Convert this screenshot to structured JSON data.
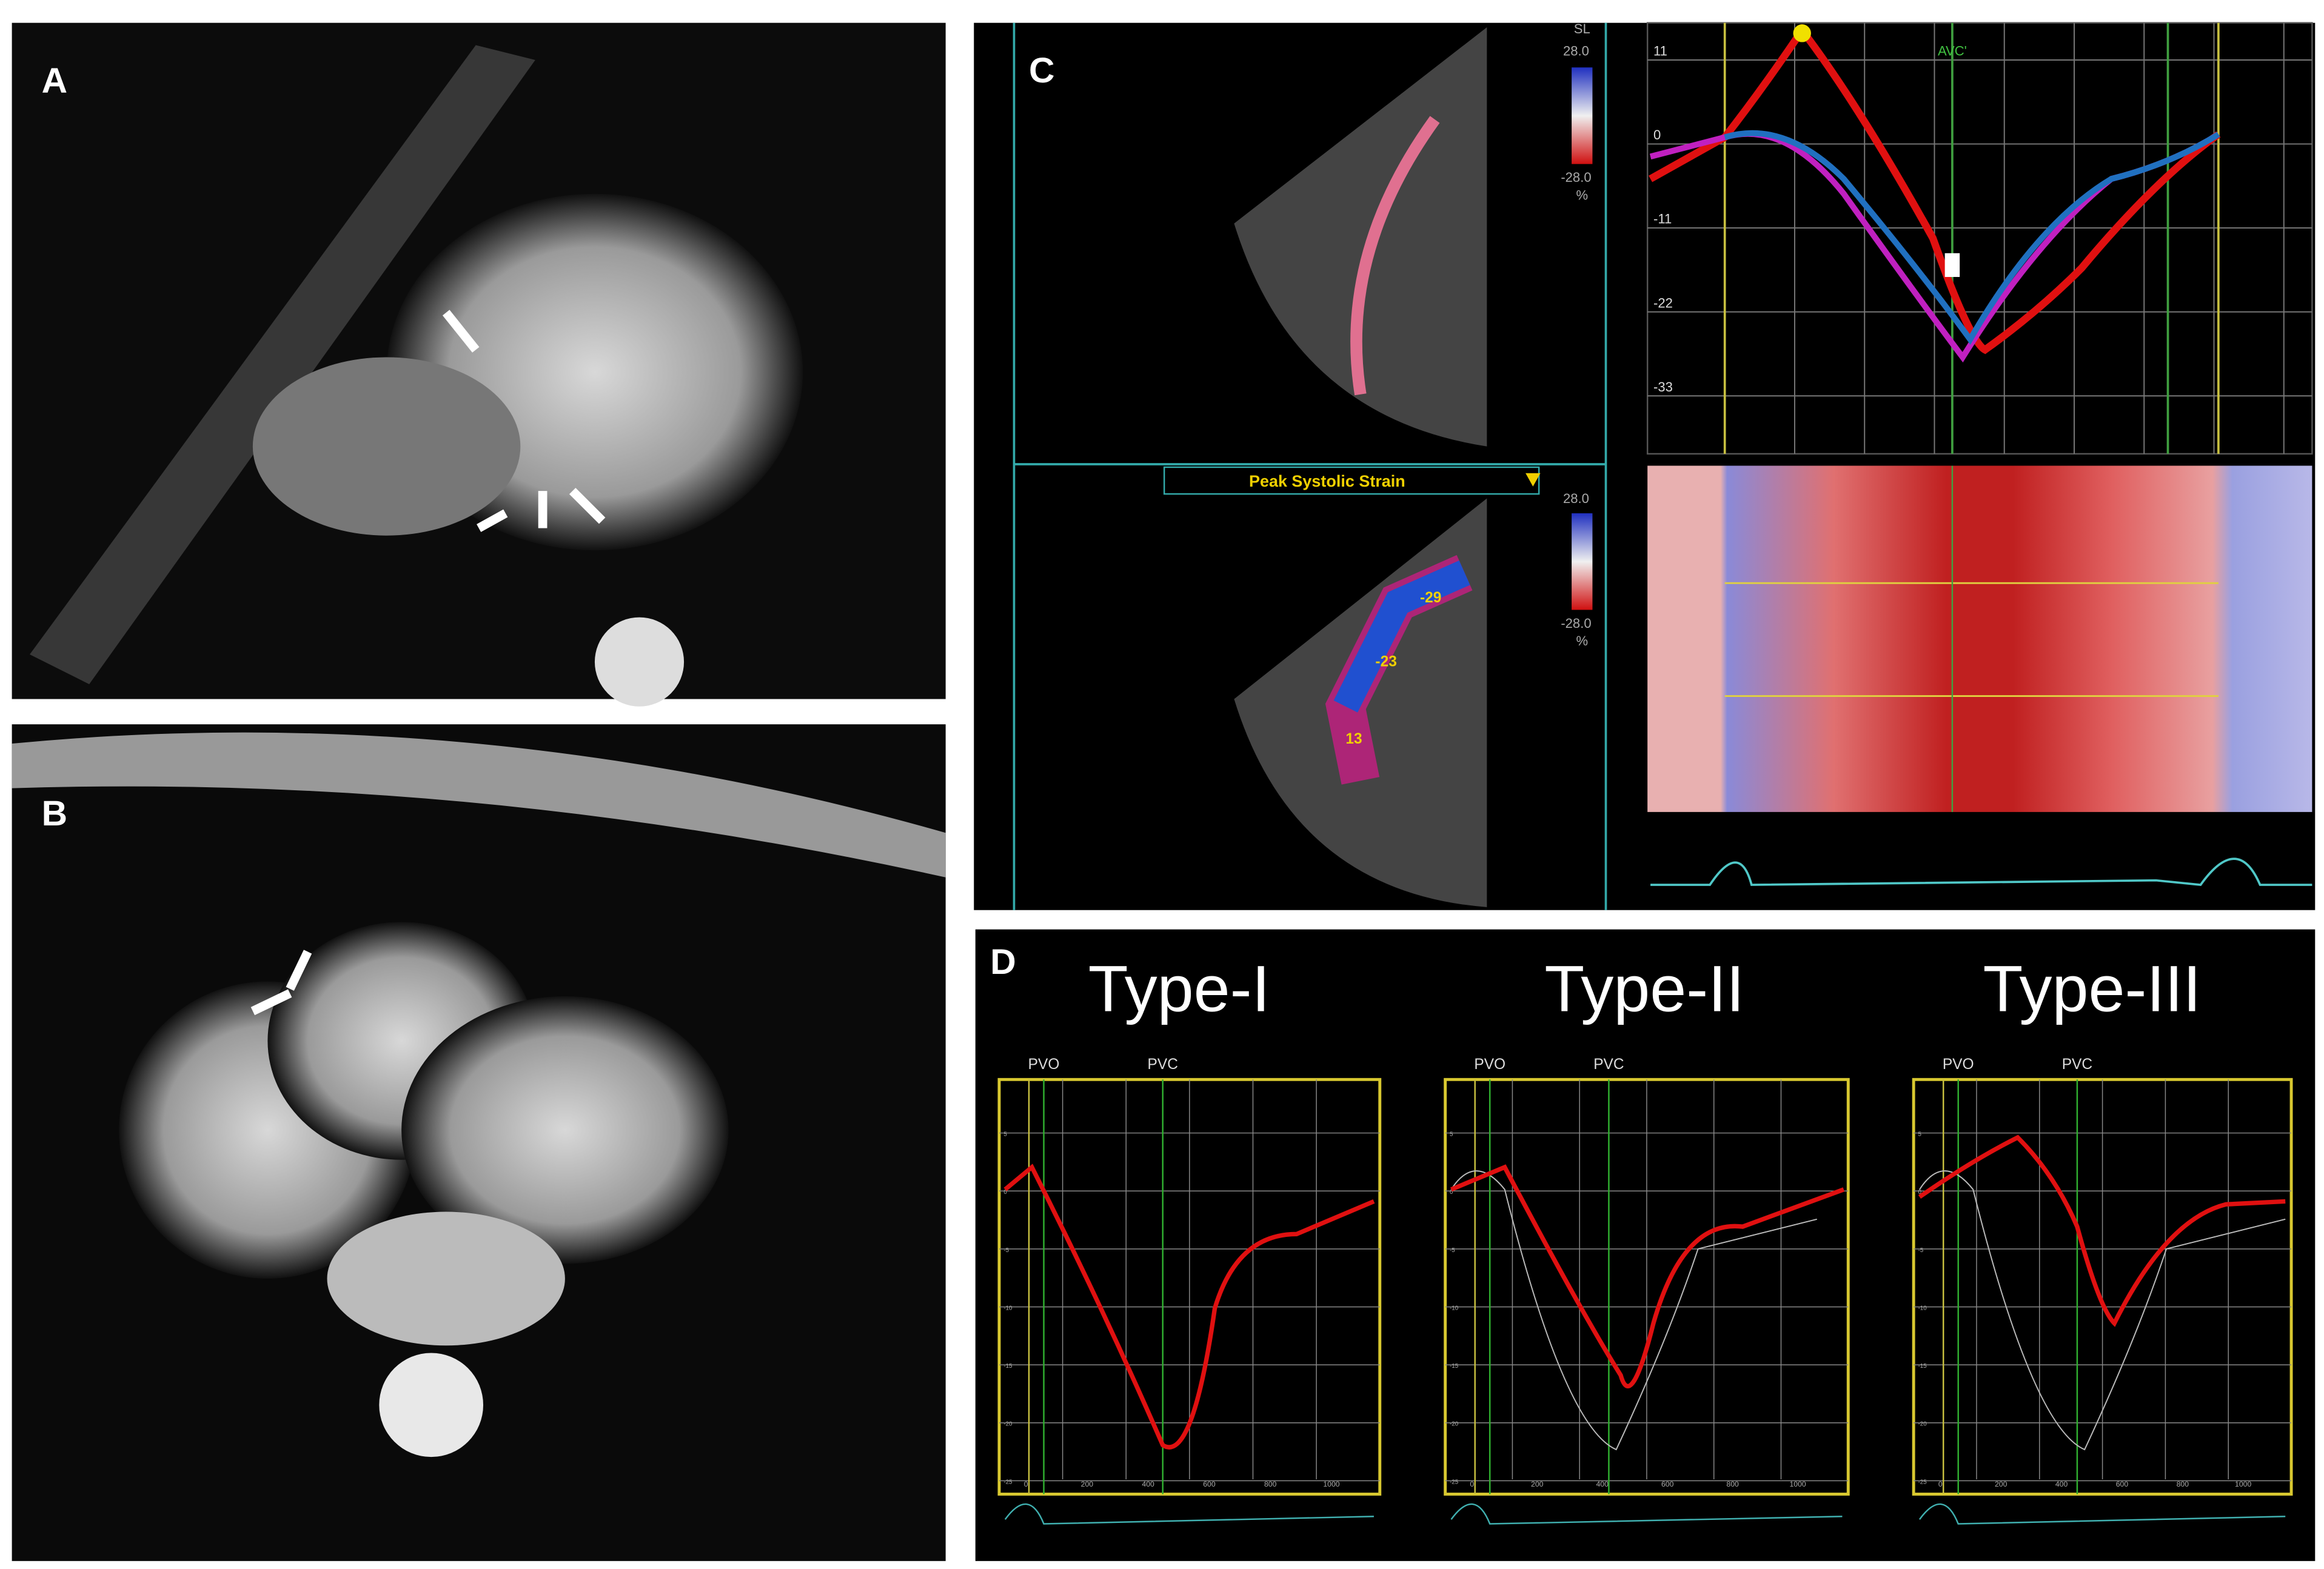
{
  "panels": {
    "a": {
      "label": "A"
    },
    "b": {
      "label": "B"
    },
    "c": {
      "label": "C",
      "color_scale": {
        "unit": "SL",
        "max": "28.0",
        "min": "-28.0",
        "percent": "%"
      },
      "measure": "Peak Systolic Strain",
      "segment_values": [
        "-29",
        "-23",
        "13"
      ],
      "strain_chart": {
        "marker": "AVC'",
        "yticks": [
          "11",
          "0",
          "-11",
          "-22",
          "-33"
        ]
      }
    },
    "d": {
      "label": "D",
      "plots": [
        {
          "title": "Type-I",
          "pvo": "PVO",
          "pvc": "PVC"
        },
        {
          "title": "Type-II",
          "pvo": "PVO",
          "pvc": "PVC"
        },
        {
          "title": "Type-III",
          "pvo": "PVO",
          "pvc": "PVC"
        }
      ],
      "xticks": [
        "0",
        "200",
        "400",
        "600",
        "800",
        "1000"
      ],
      "yticks": [
        "5",
        "0",
        "-5",
        "-10",
        "-15",
        "-20",
        "-25"
      ]
    }
  }
}
